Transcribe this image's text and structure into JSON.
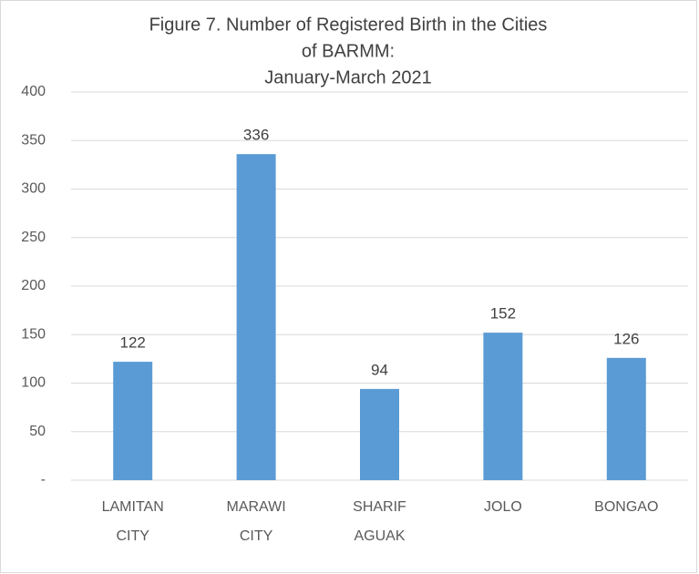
{
  "chart_data": {
    "type": "bar",
    "title": [
      "Figure 7. Number of Registered Birth in the Cities",
      "of BARMM:",
      "January-March 2021"
    ],
    "categories": [
      [
        "LAMITAN",
        "CITY"
      ],
      [
        "MARAWI",
        "CITY"
      ],
      [
        "SHARIF",
        "AGUAK"
      ],
      [
        "JOLO"
      ],
      [
        "BONGAO"
      ]
    ],
    "values": [
      122,
      336,
      94,
      152,
      126
    ],
    "color": "#5b9bd5",
    "ylim": [
      0,
      400
    ],
    "yticks": [
      {
        "value": 0,
        "label": "-"
      },
      50,
      100,
      150,
      200,
      250,
      300,
      350,
      400
    ],
    "grid": true
  }
}
